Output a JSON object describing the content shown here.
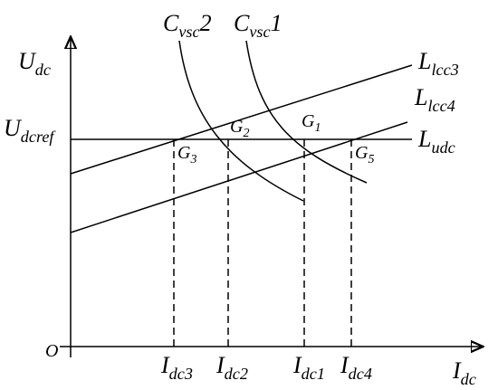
{
  "axes": {
    "y_label": {
      "main": "U",
      "sub": "dc"
    },
    "x_label": {
      "main": "I",
      "sub": "dc"
    },
    "origin": "O"
  },
  "reference": {
    "main": "U",
    "sub": "dcref"
  },
  "lines": {
    "l_udc": {
      "main": "L",
      "sub": "udc"
    },
    "l_lcc3": {
      "main": "L",
      "sub": "lcc3"
    },
    "l_lcc4": {
      "main": "L",
      "sub": "lcc4"
    }
  },
  "curves": {
    "c_vsc2": {
      "main": "C",
      "sub": "vsc",
      "tail": "2"
    },
    "c_vsc1": {
      "main": "C",
      "sub": "vsc",
      "tail": "1"
    }
  },
  "points": [
    {
      "main": "G",
      "sub": "1"
    },
    {
      "main": "G",
      "sub": "2"
    },
    {
      "main": "G",
      "sub": "3"
    },
    {
      "main": "G",
      "sub": "5"
    }
  ],
  "currents": [
    {
      "main": "I",
      "sub": "dc3"
    },
    {
      "main": "I",
      "sub": "dc2"
    },
    {
      "main": "I",
      "sub": "dc1"
    },
    {
      "main": "I",
      "sub": "dc4"
    }
  ]
}
